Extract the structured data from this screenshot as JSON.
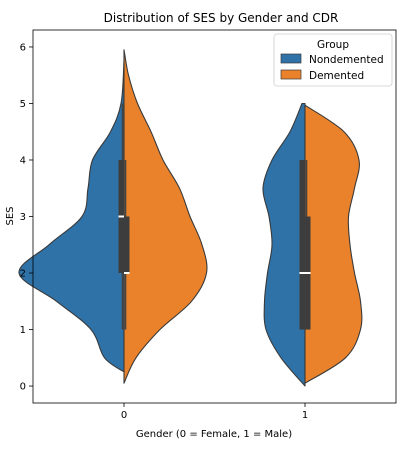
{
  "chart_data": {
    "type": "violin",
    "title": "Distribution of SES by Gender and CDR",
    "xlabel": "Gender (0 = Female, 1 = Male)",
    "ylabel": "SES",
    "categories": [
      "0",
      "1"
    ],
    "ylim": [
      -0.3,
      6.3
    ],
    "yticks": [
      0,
      1,
      2,
      3,
      4,
      5,
      6
    ],
    "grid": false,
    "split": true,
    "legend": {
      "title": "Group",
      "placement": "top-right"
    },
    "series": [
      {
        "name": "Nondemented",
        "color": "#2f72a8",
        "side": "left",
        "groups": [
          {
            "category": "0",
            "profile": [
              [
                0.25,
                0.0
              ],
              [
                0.5,
                0.13
              ],
              [
                1.0,
                0.22
              ],
              [
                1.5,
                0.45
              ],
              [
                2.0,
                0.7
              ],
              [
                2.5,
                0.5
              ],
              [
                3.0,
                0.28
              ],
              [
                3.5,
                0.24
              ],
              [
                4.0,
                0.21
              ],
              [
                4.5,
                0.09
              ],
              [
                5.0,
                0.02
              ],
              [
                5.75,
                0.0
              ]
            ],
            "box": {
              "q1": 2.0,
              "median": 3.0,
              "q3": 4.0,
              "whisker_low": 1.0,
              "whisker_high": 5.0
            }
          },
          {
            "category": "1",
            "profile": [
              [
                0.0,
                0.0
              ],
              [
                0.5,
                0.16
              ],
              [
                1.0,
                0.26
              ],
              [
                1.5,
                0.27
              ],
              [
                2.0,
                0.25
              ],
              [
                2.5,
                0.22
              ],
              [
                3.0,
                0.24
              ],
              [
                3.5,
                0.28
              ],
              [
                4.0,
                0.22
              ],
              [
                4.5,
                0.1
              ],
              [
                5.0,
                0.02
              ]
            ],
            "box": {
              "q1": 1.0,
              "median": 2.0,
              "q3": 4.0,
              "whisker_low": 1.0,
              "whisker_high": 4.0
            }
          }
        ]
      },
      {
        "name": "Demented",
        "color": "#e9822b",
        "side": "right",
        "groups": [
          {
            "category": "0",
            "profile": [
              [
                0.05,
                0.0
              ],
              [
                0.5,
                0.08
              ],
              [
                1.0,
                0.24
              ],
              [
                1.5,
                0.45
              ],
              [
                2.0,
                0.55
              ],
              [
                2.5,
                0.52
              ],
              [
                3.0,
                0.44
              ],
              [
                3.5,
                0.37
              ],
              [
                4.0,
                0.26
              ],
              [
                4.5,
                0.18
              ],
              [
                5.0,
                0.09
              ],
              [
                5.5,
                0.03
              ],
              [
                5.95,
                0.0
              ]
            ],
            "box": {
              "q1": 2.0,
              "median": 2.0,
              "q3": 3.0,
              "whisker_low": 1.0,
              "whisker_high": 4.0
            }
          },
          {
            "category": "1",
            "profile": [
              [
                0.05,
                0.0
              ],
              [
                0.5,
                0.27
              ],
              [
                1.0,
                0.37
              ],
              [
                1.5,
                0.37
              ],
              [
                2.0,
                0.33
              ],
              [
                2.5,
                0.3
              ],
              [
                3.0,
                0.29
              ],
              [
                3.5,
                0.33
              ],
              [
                4.0,
                0.36
              ],
              [
                4.5,
                0.26
              ],
              [
                4.97,
                0.0
              ]
            ],
            "box": {
              "q1": 1.0,
              "median": 2.0,
              "q3": 3.0,
              "whisker_low": 1.0,
              "whisker_high": 4.0
            }
          }
        ]
      }
    ]
  }
}
